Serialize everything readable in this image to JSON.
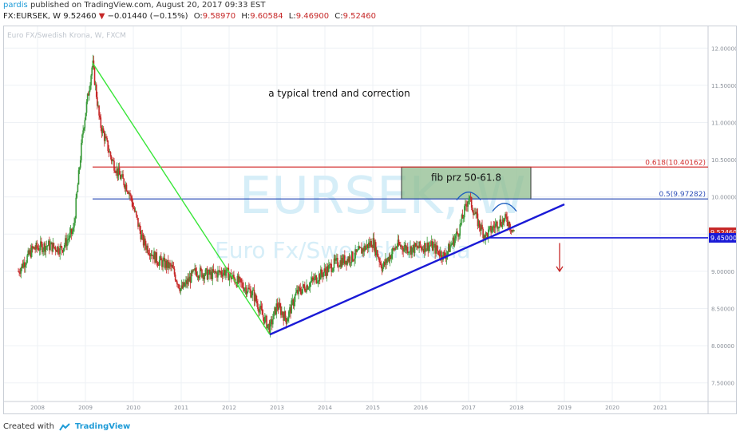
{
  "header": {
    "user": "pardis",
    "published": "published on TradingView.com, August 20, 2017 09:33 EST",
    "symbol": "FX:EURSEK, W",
    "price": "9.52460",
    "change": "−0.01440 (−0.15%)",
    "o_label": "O:",
    "o": "9.58970",
    "h_label": "H:",
    "h": "9.60584",
    "l_label": "L:",
    "l": "9.46900",
    "c_label": "C:",
    "c": "9.52460"
  },
  "footer": {
    "created_with": "Created with",
    "brand": "TradingView"
  },
  "colors": {
    "up": "#3a9a3a",
    "down": "#c62828",
    "trend_green": "#39e639",
    "trend_blue": "#1a1ad6",
    "fib_red": "#d32f2f",
    "fib_blue": "#3050b8",
    "zone_fill": "#8fbc8f",
    "grid": "#eef1f5",
    "watermark": "#d6eef8"
  },
  "chart_data": {
    "type": "candlestick",
    "symbol_desc": "Euro FX/Swedish Krona, W, FXCM",
    "watermark": "EURSEK, W",
    "watermark_sub": "Euro Fx/Swedish Krona",
    "annotation": "a typical trend and correction",
    "zone_label": "fib prz 50-61.8",
    "fib_levels": [
      {
        "label": "0.618(10.40162)",
        "value": 10.40162
      },
      {
        "label": "0.5(9.97282)",
        "value": 9.97282
      }
    ],
    "horizontal_level": 9.45,
    "price_labels": [
      "9.52460",
      "9.45000"
    ],
    "y_ticks": [
      "12.00000",
      "11.50000",
      "11.00000",
      "10.50000",
      "10.00000",
      "9.50000",
      "9.00000",
      "8.50000",
      "8.00000",
      "7.50000"
    ],
    "ylim": [
      7.25,
      12.25
    ],
    "x_ticks": [
      "2008",
      "2009",
      "2010",
      "2011",
      "2012",
      "2013",
      "2014",
      "2015",
      "2016",
      "2017",
      "2018",
      "2019",
      "2020",
      "2021"
    ],
    "xlim": [
      2007.3,
      2022.0
    ],
    "path": [
      [
        2007.6,
        9.0
      ],
      [
        2007.9,
        9.3
      ],
      [
        2008.2,
        9.35
      ],
      [
        2008.5,
        9.3
      ],
      [
        2008.75,
        9.55
      ],
      [
        2008.95,
        10.9
      ],
      [
        2009.15,
        11.8
      ],
      [
        2009.3,
        11.0
      ],
      [
        2009.55,
        10.5
      ],
      [
        2009.7,
        10.3
      ],
      [
        2009.9,
        10.1
      ],
      [
        2010.2,
        9.4
      ],
      [
        2010.5,
        9.15
      ],
      [
        2010.8,
        9.05
      ],
      [
        2011.0,
        8.75
      ],
      [
        2011.3,
        9.0
      ],
      [
        2011.6,
        8.95
      ],
      [
        2011.9,
        9.0
      ],
      [
        2012.2,
        8.85
      ],
      [
        2012.5,
        8.7
      ],
      [
        2012.7,
        8.4
      ],
      [
        2012.85,
        8.23
      ],
      [
        2013.0,
        8.55
      ],
      [
        2013.2,
        8.35
      ],
      [
        2013.4,
        8.7
      ],
      [
        2013.8,
        8.9
      ],
      [
        2014.2,
        9.1
      ],
      [
        2014.6,
        9.2
      ],
      [
        2015.0,
        9.4
      ],
      [
        2015.2,
        9.05
      ],
      [
        2015.5,
        9.35
      ],
      [
        2015.8,
        9.3
      ],
      [
        2016.2,
        9.35
      ],
      [
        2016.5,
        9.2
      ],
      [
        2016.8,
        9.55
      ],
      [
        2017.0,
        10.0
      ],
      [
        2017.2,
        9.65
      ],
      [
        2017.35,
        9.47
      ],
      [
        2017.6,
        9.65
      ],
      [
        2017.8,
        9.7
      ],
      [
        2017.95,
        9.52
      ]
    ],
    "trendlines": [
      {
        "color": "green",
        "from": [
          2009.15,
          11.8
        ],
        "to": [
          2012.85,
          8.15
        ]
      },
      {
        "color": "blue",
        "from": [
          2012.85,
          8.15
        ],
        "to": [
          2019.0,
          9.9
        ]
      }
    ],
    "fib_zone": {
      "x": [
        2015.6,
        2018.3
      ],
      "y": [
        9.97282,
        10.40162
      ]
    },
    "arcs": [
      [
        2016.75,
        2017.25,
        10.0
      ],
      [
        2017.5,
        2018.0,
        9.85
      ]
    ],
    "arrow": {
      "x": 2018.9,
      "from": 9.38,
      "to": 9.0
    }
  }
}
